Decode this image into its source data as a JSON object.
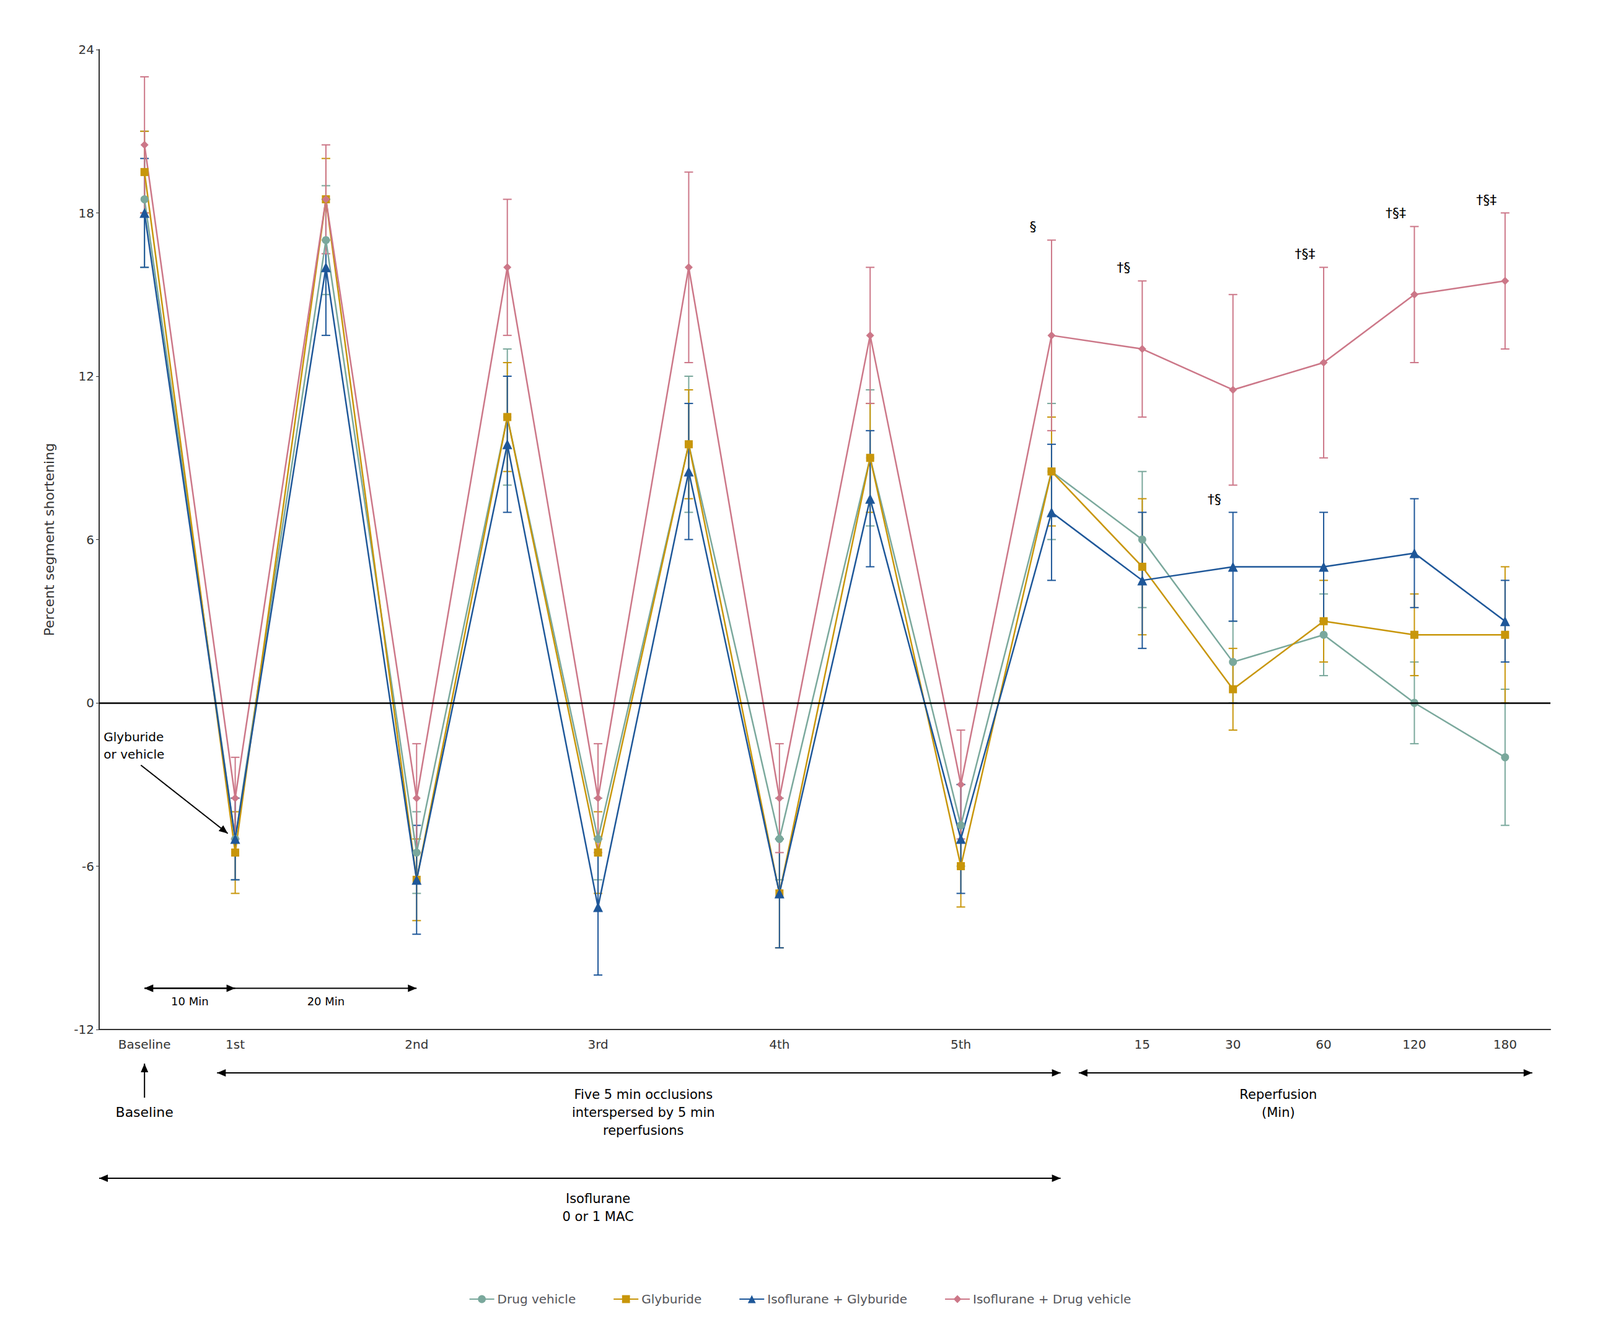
{
  "chart_data": {
    "type": "line",
    "ylabel": "Percent segment shortening",
    "categories": [
      "Baseline",
      "1st",
      null,
      "2nd",
      null,
      "3rd",
      null,
      "4th",
      null,
      "5th",
      null,
      "15",
      "30",
      "60",
      "120",
      "180"
    ],
    "series": [
      {
        "name": "Drug vehicle",
        "color": "#7aa89c",
        "marker": "circle",
        "values": [
          18.5,
          -5.0,
          17.0,
          -5.5,
          10.5,
          -5.0,
          9.5,
          -5.0,
          9.0,
          -4.5,
          8.5,
          6.0,
          1.5,
          2.5,
          0.0,
          -2.0
        ],
        "errors": [
          2.5,
          1.5,
          2.0,
          1.5,
          2.5,
          1.5,
          2.5,
          1.5,
          2.5,
          1.5,
          2.5,
          2.5,
          1.5,
          1.5,
          1.5,
          2.5
        ],
        "point_annotations": [
          null,
          null,
          null,
          null,
          null,
          null,
          null,
          null,
          null,
          null,
          null,
          null,
          null,
          null,
          null,
          null
        ]
      },
      {
        "name": "Glyburide",
        "color": "#c8960a",
        "marker": "square",
        "values": [
          19.5,
          -5.5,
          18.5,
          -6.5,
          10.5,
          -5.5,
          9.5,
          -7.0,
          9.0,
          -6.0,
          8.5,
          5.0,
          0.5,
          3.0,
          2.5,
          2.5
        ],
        "errors": [
          1.5,
          1.5,
          1.5,
          1.5,
          2.0,
          1.5,
          2.0,
          2.0,
          2.0,
          1.5,
          2.0,
          2.5,
          1.5,
          1.5,
          1.5,
          2.5
        ],
        "point_annotations": [
          null,
          null,
          null,
          null,
          null,
          null,
          null,
          null,
          null,
          null,
          null,
          null,
          null,
          null,
          null,
          null
        ]
      },
      {
        "name": "Isoflurane + Glyburide",
        "color": "#1e5799",
        "marker": "triangle",
        "values": [
          18.0,
          -5.0,
          16.0,
          -6.5,
          9.5,
          -7.5,
          8.5,
          -7.0,
          7.5,
          -5.0,
          7.0,
          4.5,
          5.0,
          5.0,
          5.5,
          3.0
        ],
        "errors": [
          2.0,
          1.5,
          2.5,
          2.0,
          2.5,
          2.5,
          2.5,
          2.0,
          2.5,
          2.0,
          2.5,
          2.5,
          2.0,
          2.0,
          2.0,
          1.5
        ],
        "point_annotations": [
          null,
          null,
          null,
          null,
          null,
          null,
          null,
          null,
          null,
          null,
          null,
          null,
          "†§",
          null,
          null,
          null
        ]
      },
      {
        "name": "Isoflurane + Drug vehicle",
        "color": "#cc7788",
        "marker": "diamond",
        "values": [
          20.5,
          -3.5,
          18.5,
          -3.5,
          16.0,
          -3.5,
          16.0,
          -3.5,
          13.5,
          -3.0,
          13.5,
          13.0,
          11.5,
          12.5,
          15.0,
          15.5
        ],
        "errors": [
          2.5,
          1.5,
          2.0,
          2.0,
          2.5,
          2.0,
          3.5,
          2.0,
          2.5,
          2.0,
          3.5,
          2.5,
          3.5,
          3.5,
          2.5,
          2.5
        ],
        "point_annotations": [
          null,
          null,
          null,
          null,
          null,
          null,
          null,
          null,
          null,
          null,
          "§",
          "†§",
          null,
          "†§‡",
          "†§‡",
          "†§‡"
        ]
      }
    ],
    "ylim": [
      -12,
      24
    ],
    "yticks": [
      -12,
      -6,
      0,
      6,
      12,
      18,
      24
    ],
    "grid": false,
    "legend": "bottom",
    "annotations": [
      "Glyburide\nor vehicle",
      "10 Min",
      "20 Min",
      "Baseline",
      "Five 5 min occlusions\ninterspersed by 5 min\nreperfusions",
      "Reperfusion\n(Min)",
      "Isoflurane\n0 or 1 MAC"
    ]
  }
}
